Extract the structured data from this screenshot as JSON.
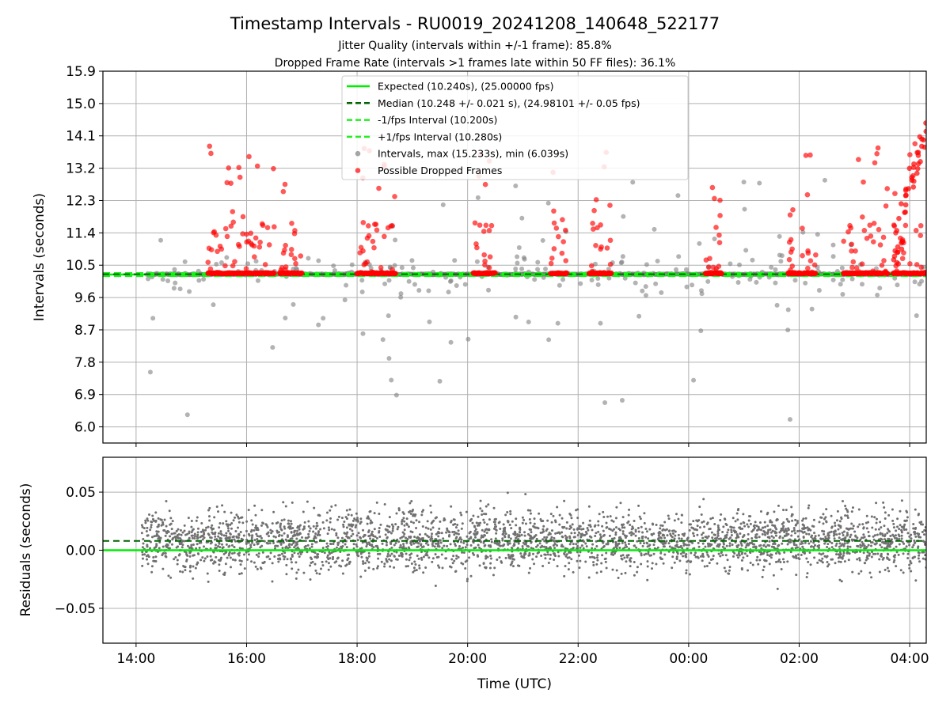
{
  "header": {
    "title": "Timestamp Intervals - RU0019_20241208_140648_522177",
    "subtitle_1": "Jitter Quality (intervals within +/-1 frame): 85.8%",
    "subtitle_2": "Dropped Frame Rate (intervals >1 frames late within 50 FF files): 36.1%"
  },
  "colors": {
    "expected": "#00ee00",
    "median": "#006400",
    "fps_band": "#22ee22",
    "intervals": "#808080",
    "dropped": "#ff0000",
    "residuals": "#707070",
    "grid": "#b0b0b0"
  },
  "chart_data": [
    {
      "type": "scatter",
      "panel": "intervals",
      "ylabel": "Intervals (seconds)",
      "ylim": [
        5.55,
        15.9
      ],
      "y_ticks": [
        "6.0",
        "6.9",
        "7.8",
        "8.7",
        "9.6",
        "10.5",
        "11.4",
        "12.3",
        "13.2",
        "14.1",
        "15.0",
        "15.9"
      ],
      "x_range_hours": [
        13.4,
        28.3
      ],
      "grid": true,
      "legend_position": "top-center",
      "legend": [
        {
          "label": "Expected (10.240s), (25.00000 fps)",
          "style": "solid",
          "color": "#00ee00"
        },
        {
          "label": "Median (10.248 +/- 0.021 s), (24.98101 +/- 0.05 fps)",
          "style": "dashed",
          "color": "#006400"
        },
        {
          "label": "-1/fps Interval (10.200s)",
          "style": "dashed",
          "color": "#22ee22"
        },
        {
          "label": "+1/fps Interval (10.280s)",
          "style": "dashed",
          "color": "#22ee22"
        },
        {
          "label": "Intervals, max (15.233s), min (6.039s)",
          "style": "marker",
          "color": "#808080"
        },
        {
          "label": "Possible Dropped Frames",
          "style": "marker",
          "color": "#ff0000"
        }
      ],
      "reference_lines": {
        "expected": 10.24,
        "median": 10.248,
        "minus_1_fps": 10.2,
        "plus_1_fps": 10.28
      },
      "stats": {
        "max": 15.233,
        "min": 6.039
      },
      "dropped_clusters": [
        [
          15.3,
          16.5
        ],
        [
          16.6,
          17.0
        ],
        [
          18.0,
          18.7
        ],
        [
          20.1,
          20.5
        ],
        [
          21.5,
          21.8
        ],
        [
          22.2,
          22.6
        ],
        [
          24.3,
          24.6
        ],
        [
          25.8,
          26.3
        ],
        [
          26.8,
          27.6
        ],
        [
          27.7,
          28.3
        ]
      ]
    },
    {
      "type": "scatter",
      "panel": "residuals",
      "ylabel": "Residuals (seconds)",
      "ylim": [
        -0.08,
        0.08
      ],
      "y_ticks": [
        {
          "v": 0.05,
          "label": "0.05"
        },
        {
          "v": 0.0,
          "label": "0.00"
        },
        {
          "v": -0.05,
          "label": "−0.05"
        }
      ],
      "x_range_hours": [
        13.4,
        28.3
      ],
      "grid": true,
      "reference_lines": {
        "expected": 0.0,
        "median": 0.008
      },
      "xlabel": "Time (UTC)",
      "x_ticks": [
        {
          "h": 14,
          "label": "14:00"
        },
        {
          "h": 16,
          "label": "16:00"
        },
        {
          "h": 18,
          "label": "18:00"
        },
        {
          "h": 20,
          "label": "20:00"
        },
        {
          "h": 22,
          "label": "22:00"
        },
        {
          "h": 24,
          "label": "00:00"
        },
        {
          "h": 26,
          "label": "02:00"
        },
        {
          "h": 28,
          "label": "04:00"
        }
      ]
    }
  ]
}
